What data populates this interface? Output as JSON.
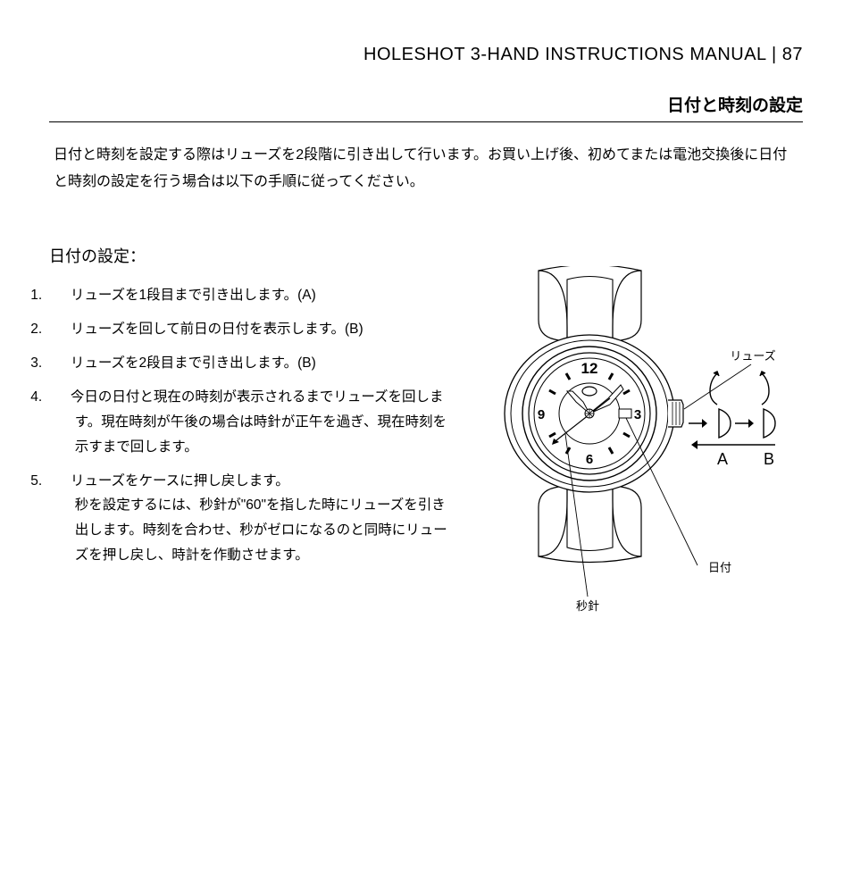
{
  "header": {
    "manual_title": "HOLESHOT 3-HAND INSTRUCTIONS MANUAL",
    "separator": " | ",
    "page_number": "87"
  },
  "section_title": "日付と時刻の設定",
  "intro": "日付と時刻を設定する際はリューズを2段階に引き出して行います。お買い上げ後、初めてまたは電池交換後に日付と時刻の設定を行う場合は以下の手順に従ってください。",
  "subheading": "日付の設定：",
  "steps": [
    {
      "num": "1.",
      "text": "リューズを1段目まで引き出します。(A)"
    },
    {
      "num": "2.",
      "text": "リューズを回して前日の日付を表示します。(B)"
    },
    {
      "num": "3.",
      "text": "リューズを2段目まで引き出します。(B)"
    },
    {
      "num": "4.",
      "text": "今日の日付と現在の時刻が表示されるまでリューズを回します。現在時刻が午後の場合は時針が正午を過ぎ、現在時刻を示すまで回します。"
    },
    {
      "num": "5.",
      "text": "リューズをケースに押し戻します。\n秒を設定するには、秒針が\"60\"を指した時にリューズを引き出します。時刻を合わせ、秒がゼロになるのと同時にリューズを押し戻し、時計を作動させます。"
    }
  ],
  "diagram": {
    "labels": {
      "crown": "リューズ",
      "date": "日付",
      "second_hand": "秒針",
      "pos_a": "A",
      "pos_b": "B"
    },
    "dial_numbers": {
      "twelve": "12",
      "three": "3",
      "six": "6",
      "nine": "9"
    },
    "colors": {
      "stroke": "#000000",
      "fill_light": "#ffffff",
      "fill_gray": "#f5f5f5"
    }
  }
}
